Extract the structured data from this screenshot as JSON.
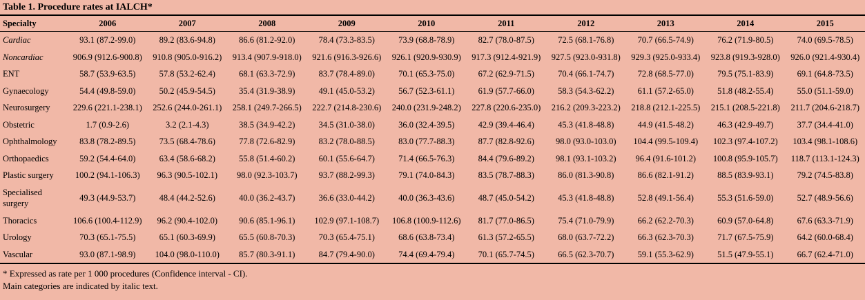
{
  "header": {
    "title": "Table 1. Procedure rates at IALCH*"
  },
  "table": {
    "columns": [
      "Specialty",
      "2006",
      "2007",
      "2008",
      "2009",
      "2010",
      "2011",
      "2012",
      "2013",
      "2014",
      "2015"
    ],
    "rows": [
      {
        "specialty": "Cardiac",
        "italic": true,
        "values": [
          "93.1 (87.2-99.0)",
          "89.2 (83.6-94.8)",
          "86.6 (81.2-92.0)",
          "78.4 (73.3-83.5)",
          "73.9 (68.8-78.9)",
          "82.7 (78.0-87.5)",
          "72.5 (68.1-76.8)",
          "70.7 (66.5-74.9)",
          "76.2 (71.9-80.5)",
          "74.0 (69.5-78.5)"
        ]
      },
      {
        "specialty": "Noncardiac",
        "italic": true,
        "values": [
          "906.9 (912.6-900.8)",
          "910.8 (905.0-916.2)",
          "913.4 (907.9-918.0)",
          "921.6 (916.3-926.6)",
          "926.1 (920.9-930.9)",
          "917.3 (912.4-921.9)",
          "927.5 (923.0-931.8)",
          "929.3 (925.0-933.4)",
          "923.8 (919.3-928.0)",
          "926.0 (921.4-930.4)"
        ]
      },
      {
        "specialty": "ENT",
        "italic": false,
        "values": [
          "58.7 (53.9-63.5)",
          "57.8 (53.2-62.4)",
          "68.1 (63.3-72.9)",
          "83.7 (78.4-89.0)",
          "70.1 (65.3-75.0)",
          "67.2 (62.9-71.5)",
          "70.4 (66.1-74.7)",
          "72.8 (68.5-77.0)",
          "79.5 (75.1-83.9)",
          "69.1 (64.8-73.5)"
        ]
      },
      {
        "specialty": "Gynaecology",
        "italic": false,
        "values": [
          "54.4 (49.8-59.0)",
          "50.2 (45.9-54.5)",
          "35.4 (31.9-38.9)",
          "49.1 (45.0-53.2)",
          "56.7 (52.3-61.1)",
          "61.9 (57.7-66.0)",
          "58.3 (54.3-62.2)",
          "61.1 (57.2-65.0)",
          "51.8 (48.2-55.4)",
          "55.0 (51.1-59.0)"
        ]
      },
      {
        "specialty": "Neurosurgery",
        "italic": false,
        "values": [
          "229.6 (221.1-238.1)",
          "252.6 (244.0-261.1)",
          "258.1 (249.7-266.5)",
          "222.7 (214.8-230.6)",
          "240.0 (231.9-248.2)",
          "227.8 (220.6-235.0)",
          "216.2 (209.3-223.2)",
          "218.8 (212.1-225.5)",
          "215.1 (208.5-221.8)",
          "211.7 (204.6-218.7)"
        ]
      },
      {
        "specialty": "Obstetric",
        "italic": false,
        "values": [
          "1.7 (0.9-2.6)",
          "3.2 (2.1-4.3)",
          "38.5 (34.9-42.2)",
          "34.5 (31.0-38.0)",
          "36.0 (32.4-39.5)",
          "42.9 (39.4-46.4)",
          "45.3 (41.8-48.8)",
          "44.9 (41.5-48.2)",
          "46.3 (42.9-49.7)",
          "37.7 (34.4-41.0)"
        ]
      },
      {
        "specialty": "Ophthalmology",
        "italic": false,
        "values": [
          "83.8 (78.2-89.5)",
          "73.5 (68.4-78.6)",
          "77.8 (72.6-82.9)",
          "83.2 (78.0-88.5)",
          "83.0 (77.7-88.3)",
          "87.7 (82.8-92.6)",
          "98.0 (93.0-103.0)",
          "104.4 (99.5-109.4)",
          "102.3 (97.4-107.2)",
          "103.4 (98.1-108.6)"
        ]
      },
      {
        "specialty": "Orthopaedics",
        "italic": false,
        "values": [
          "59.2 (54.4-64.0)",
          "63.4 (58.6-68.2)",
          "55.8 (51.4-60.2)",
          "60.1 (55.6-64.7)",
          "71.4 (66.5-76.3)",
          "84.4 (79.6-89.2)",
          "98.1 (93.1-103.2)",
          "96.4 (91.6-101.2)",
          "100.8 (95.9-105.7)",
          "118.7 (113.1-124.3)"
        ]
      },
      {
        "specialty": "Plastic surgery",
        "italic": false,
        "values": [
          "100.2 (94.1-106.3)",
          "96.3 (90.5-102.1)",
          "98.0 (92.3-103.7)",
          "93.7 (88.2-99.3)",
          "79.1 (74.0-84.3)",
          "83.5 (78.7-88.3)",
          "86.0 (81.3-90.8)",
          "86.6 (82.1-91.2)",
          "88.5 (83.9-93.1)",
          "79.2 (74.5-83.8)"
        ]
      },
      {
        "specialty": "Specialised surgery",
        "italic": false,
        "values": [
          "49.3 (44.9-53.7)",
          "48.4 (44.2-52.6)",
          "40.0 (36.2-43.7)",
          "36.6 (33.0-44.2)",
          "40.0 (36.3-43.6)",
          "48.7 (45.0-54.2)",
          "45.3 (41.8-48.8)",
          "52.8 (49.1-56.4)",
          "55.3 (51.6-59.0)",
          "52.7 (48.9-56.6)"
        ]
      },
      {
        "specialty": "Thoracics",
        "italic": false,
        "values": [
          "106.6 (100.4-112.9)",
          "96.2 (90.4-102.0)",
          "90.6 (85.1-96.1)",
          "102.9 (97.1-108.7)",
          "106.8 (100.9-112.6)",
          "81.7 (77.0-86.5)",
          "75.4 (71.0-79.9)",
          "66.2 (62.2-70.3)",
          "60.9 (57.0-64.8)",
          "67.6 (63.3-71.9)"
        ]
      },
      {
        "specialty": "Urology",
        "italic": false,
        "values": [
          "70.3 (65.1-75.5)",
          "65.1 (60.3-69.9)",
          "65.5 (60.8-70.3)",
          "70.3 (65.4-75.1)",
          "68.6 (63.8-73.4)",
          "61.3 (57.2-65.5)",
          "68.0 (63.7-72.2)",
          "66.3 (62.3-70.3)",
          "71.7 (67.5-75.9)",
          "64.2 (60.0-68.4)"
        ]
      },
      {
        "specialty": "Vascular",
        "italic": false,
        "values": [
          "93.0 (87.1-98.9)",
          "104.0 (98.0-110.0)",
          "85.7 (80.3-91.1)",
          "84.7 (79.4-90.0)",
          "74.4 (69.4-79.4)",
          "70.1 (65.7-74.5)",
          "66.5 (62.3-70.7)",
          "59.1 (55.3-62.9)",
          "51.5 (47.9-55.1)",
          "66.7 (62.4-71.0)"
        ]
      }
    ]
  },
  "footnotes": [
    "* Expressed as rate per 1 000 procedures (Confidence interval - CI).",
    "Main categories are indicated by italic text."
  ]
}
